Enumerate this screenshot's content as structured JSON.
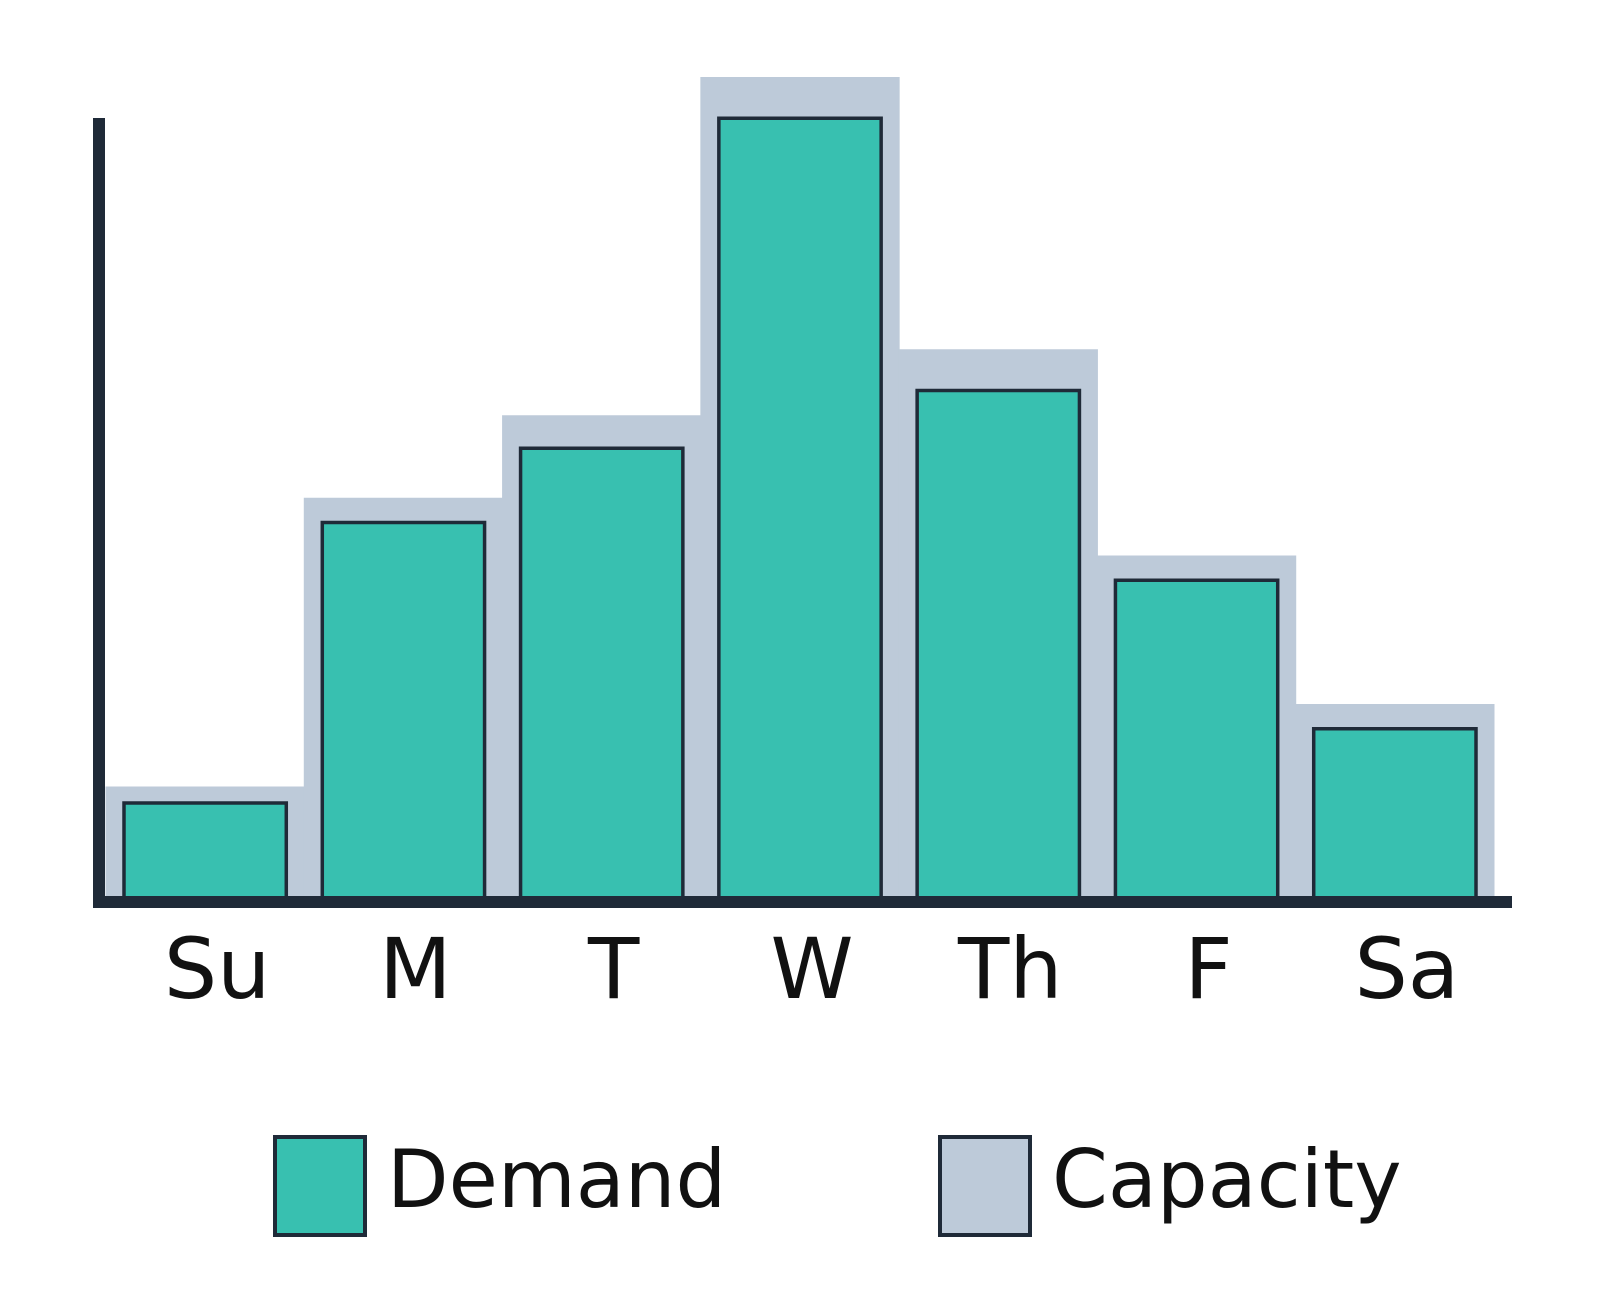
{
  "chart_data": {
    "type": "bar",
    "categories": [
      "Su",
      "M",
      "T",
      "W",
      "Th",
      "F",
      "Sa"
    ],
    "series": [
      {
        "name": "Capacity",
        "color": "#bdcad9",
        "values": [
          14,
          49,
          59,
          100,
          67,
          42,
          24
        ]
      },
      {
        "name": "Demand",
        "color": "#38c0b0",
        "values": [
          12,
          46,
          55,
          95,
          62,
          39,
          21
        ]
      }
    ],
    "ylim": [
      0,
      100
    ]
  }
}
